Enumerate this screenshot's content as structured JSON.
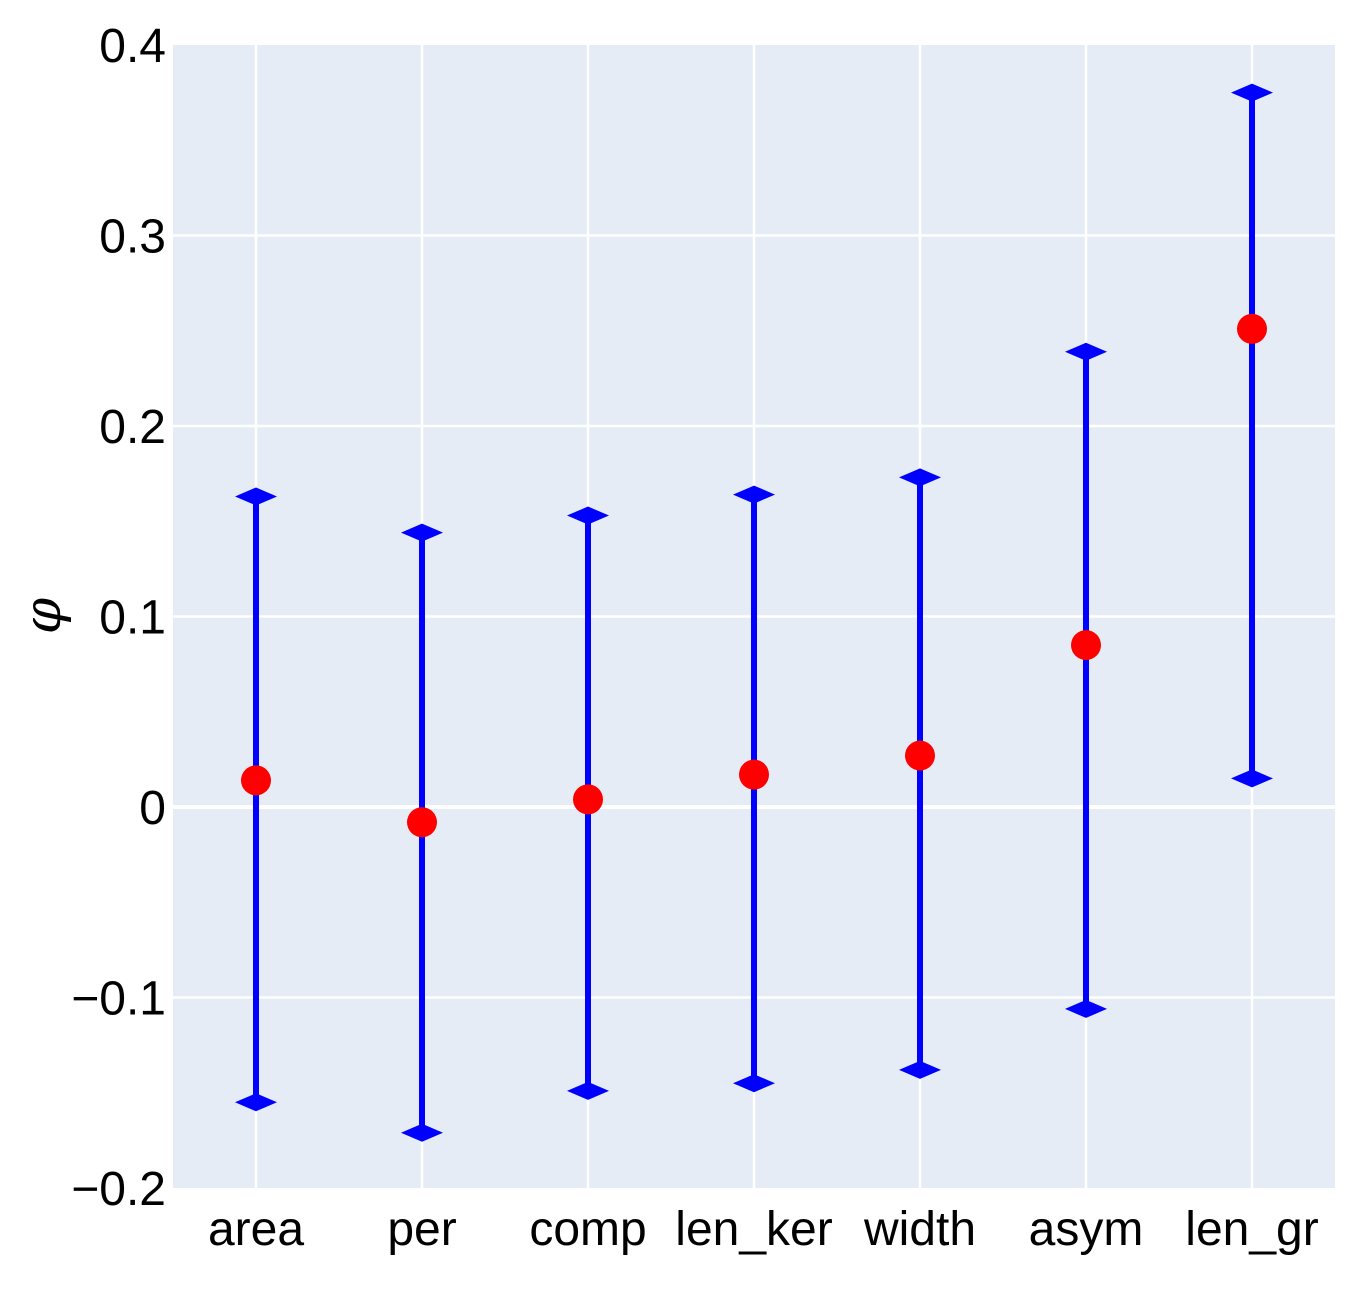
{
  "chart_data": {
    "type": "scatter",
    "ylabel": "φ",
    "xlabel": "",
    "title": "",
    "categories": [
      "area",
      "per",
      "comp",
      "len_ker",
      "width",
      "asym",
      "len_gr"
    ],
    "values": [
      0.014,
      -0.008,
      0.004,
      0.017,
      0.027,
      0.085,
      0.251
    ],
    "lower": [
      -0.155,
      -0.171,
      -0.149,
      -0.145,
      -0.138,
      -0.106,
      0.015
    ],
    "upper": [
      0.163,
      0.144,
      0.153,
      0.164,
      0.173,
      0.239,
      0.375
    ],
    "ylim": [
      -0.2,
      0.4
    ],
    "yticks": [
      -0.2,
      -0.1,
      0,
      0.1,
      0.2,
      0.3,
      0.4
    ],
    "ytick_labels": [
      "−0.2",
      "−0.1",
      "0",
      "0.1",
      "0.2",
      "0.3",
      "0.4"
    ],
    "grid": true,
    "colors": {
      "background": "#e5ecf6",
      "grid": "#ffffff",
      "errorbar": "#0000ff",
      "point": "#ff0000"
    }
  }
}
